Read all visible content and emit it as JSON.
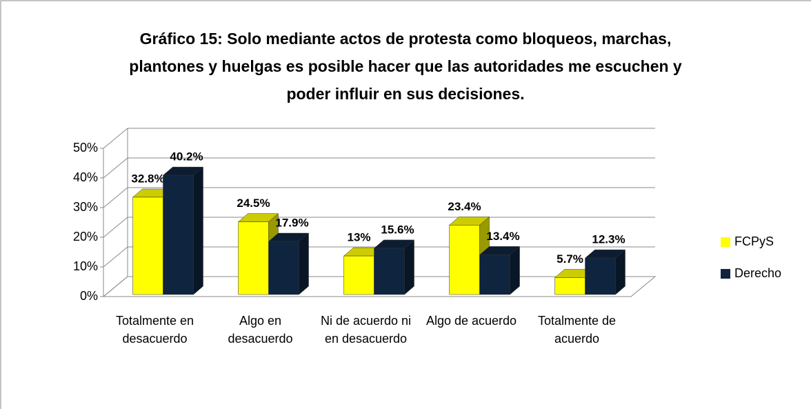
{
  "chart_data": {
    "type": "bar3d",
    "title": "Gráfico 15: Solo mediante actos de protesta como bloqueos, marchas, plantones y huelgas es posible hacer que las autoridades me escuchen y poder influir en sus decisiones.",
    "categories": [
      "Totalmente en desacuerdo",
      "Algo en desacuerdo",
      "Ni de acuerdo ni en desacuerdo",
      "Algo de acuerdo",
      "Totalmente de acuerdo"
    ],
    "series": [
      {
        "name": "FCPyS",
        "color": "#ffff00",
        "values": [
          32.8,
          24.5,
          13,
          23.4,
          5.7
        ],
        "value_labels": [
          "32.8%",
          "24.5%",
          "13%",
          "23.4%",
          "5.7%"
        ]
      },
      {
        "name": "Derecho",
        "color": "#0f243e",
        "values": [
          40.2,
          17.9,
          15.6,
          13.4,
          12.3
        ],
        "value_labels": [
          "40.2%",
          "17.9%",
          "15.6%",
          "13.4%",
          "12.3%"
        ]
      }
    ],
    "ylim": [
      0,
      50
    ],
    "yticks": [
      {
        "value": 0,
        "label": "0%"
      },
      {
        "value": 10,
        "label": "10%"
      },
      {
        "value": 20,
        "label": "20%"
      },
      {
        "value": 30,
        "label": "30%"
      },
      {
        "value": 40,
        "label": "40%"
      },
      {
        "value": 50,
        "label": "50%"
      }
    ],
    "grid": true,
    "legend": "right"
  }
}
